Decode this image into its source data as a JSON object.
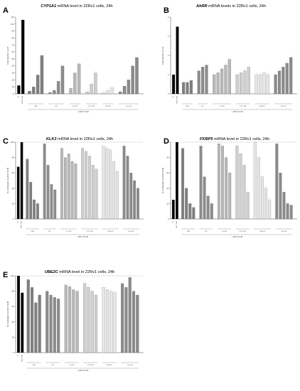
{
  "colors": {
    "ctrl": "#000000",
    "groups": [
      "#7f7f7f",
      "#8c8c8c",
      "#b8b8b8",
      "#cfcfcf",
      "#e6e6e6",
      "#8a8a8a"
    ]
  },
  "panels": [
    {
      "letter": "A",
      "gene": "CYP1A1",
      "title_rest": " mRNA level in 22Rv1 cells, 24h",
      "ylabel": "Fold induction vs UT",
      "dht_label": "+ DHT 10 nM",
      "chart_data": {
        "type": "bar",
        "ylim": [
          0,
          110
        ],
        "yticks": [
          0,
          10,
          20,
          30,
          40,
          50,
          60,
          70,
          80,
          90,
          100,
          110
        ],
        "reference_line": null,
        "ctrl_labels": [
          "UT",
          "TCDD 10nM"
        ],
        "ctrl_values": [
          12,
          106
        ],
        "groups": [
          {
            "name": "DIM",
            "values": [
              4,
              10,
              27,
              55
            ]
          },
          {
            "name": "I3C",
            "values": [
              2,
              5,
              18,
              40
            ]
          },
          {
            "name": "1-CO3I",
            "values": [
              8,
              30,
              43
            ]
          },
          {
            "name": "2,3,7-TIB",
            "values": [
              3,
              14,
              30
            ]
          },
          {
            "name": "I3-DIOX",
            "values": [
              2,
              5,
              9
            ]
          },
          {
            "name": "Tris-C3I",
            "values": [
              3,
              11,
              20,
              40,
              52
            ]
          }
        ]
      }
    },
    {
      "letter": "B",
      "gene": "AhRR",
      "title_rest": " mRNA levels in 22Rv1 cells, 24h",
      "ylabel": "Fold induction vs UT",
      "dht_label": "+ DHT 10 nM",
      "chart_data": {
        "type": "bar",
        "ylim": [
          0,
          4
        ],
        "yticks": [
          0,
          1,
          2,
          3,
          4
        ],
        "reference_line": null,
        "ctrl_labels": [
          "UT",
          "TCDD 10nM"
        ],
        "ctrl_values": [
          1.0,
          3.5
        ],
        "groups": [
          {
            "name": "DIM",
            "values": [
              0.6,
              0.6,
              0.7
            ]
          },
          {
            "name": "I3C",
            "values": [
              1.2,
              1.4,
              1.5
            ]
          },
          {
            "name": "1-CO3I",
            "values": [
              1.0,
              1.1,
              1.3,
              1.5,
              1.8
            ]
          },
          {
            "name": "2,3,7-TIB",
            "values": [
              1.0,
              1.1,
              1.2,
              1.4
            ]
          },
          {
            "name": "I3-DIOX",
            "values": [
              1.0,
              1.0,
              1.1,
              1.0
            ]
          },
          {
            "name": "Tris-C3I",
            "values": [
              1.0,
              1.2,
              1.4,
              1.6,
              1.9
            ]
          }
        ]
      }
    },
    {
      "letter": "C",
      "gene": "KLK3",
      "title_rest": " mRNA level in 22Rv1 cells, 24h",
      "ylabel": "% of activation by DHT 10nM",
      "dht_label": "+ DHT 10 nM",
      "chart_data": {
        "type": "bar",
        "ylim": [
          0,
          100
        ],
        "yticks": [
          0,
          20,
          40,
          60,
          80,
          100
        ],
        "reference_line": 100,
        "ctrl_labels": [
          "UT",
          "DHT 10nM"
        ],
        "ctrl_values": [
          68,
          100
        ],
        "groups": [
          {
            "name": "DIM",
            "values": [
              78,
              48,
              25,
              20
            ]
          },
          {
            "name": "I3C",
            "values": [
              98,
              70,
              45,
              38
            ]
          },
          {
            "name": "1-CO3I",
            "values": [
              92,
              80,
              85,
              75,
              72
            ]
          },
          {
            "name": "2,3,7-TIB",
            "values": [
              92,
              88,
              82,
              70,
              65
            ]
          },
          {
            "name": "I3-DIOX",
            "values": [
              95,
              92,
              90,
              75,
              62
            ]
          },
          {
            "name": "Tris-C3I",
            "values": [
              95,
              82,
              60,
              50,
              40
            ]
          }
        ]
      }
    },
    {
      "letter": "D",
      "gene": "FKBP5",
      "title_rest": " mRNA level in 22Rv1 cells, 24h",
      "ylabel": "% of activation by DHT 10nM",
      "dht_label": "+ DHT 10 nM",
      "chart_data": {
        "type": "bar",
        "ylim": [
          0,
          100
        ],
        "yticks": [
          0,
          20,
          40,
          60,
          80,
          100
        ],
        "reference_line": 100,
        "ctrl_labels": [
          "UT",
          "DHT 10nM"
        ],
        "ctrl_values": [
          25,
          100
        ],
        "groups": [
          {
            "name": "DIM",
            "values": [
              92,
              40,
              20,
              15
            ]
          },
          {
            "name": "I3C",
            "values": [
              95,
              55,
              30,
              20
            ]
          },
          {
            "name": "1-CO3I",
            "values": [
              98,
              95,
              80,
              60
            ]
          },
          {
            "name": "2,3,7-TIB",
            "values": [
              95,
              85,
              70,
              35
            ]
          },
          {
            "name": "I3-DIOX",
            "values": [
              100,
              80,
              55,
              40,
              25
            ]
          },
          {
            "name": "Tris-C3I",
            "values": [
              98,
              60,
              35,
              20,
              18
            ]
          }
        ]
      }
    },
    {
      "letter": "E",
      "gene": "UBE2C",
      "title_rest": " mRNA level in 22Rv1 cells, 24h",
      "ylabel": "% of activation by DHT 10nM",
      "dht_label": "+ DHT 10 nM",
      "chart_data": {
        "type": "bar",
        "ylim": [
          0,
          100
        ],
        "yticks": [
          0,
          20,
          40,
          60,
          80,
          100
        ],
        "reference_line": 100,
        "ctrl_labels": [
          "UT",
          "DHT 10nM"
        ],
        "ctrl_values": [
          100,
          78
        ],
        "groups": [
          {
            "name": "DIM",
            "values": [
              95,
              85,
              65,
              75
            ]
          },
          {
            "name": "I3C",
            "values": [
              80,
              75,
              72,
              70
            ]
          },
          {
            "name": "1-CO3I",
            "values": [
              88,
              86,
              82,
              80
            ]
          },
          {
            "name": "2,3,7-TIB",
            "values": [
              90,
              85,
              80,
              75
            ]
          },
          {
            "name": "I3-DIOX",
            "values": [
              85,
              82,
              80,
              78
            ]
          },
          {
            "name": "Tris-C3I",
            "values": [
              90,
              85,
              98,
              80,
              75
            ]
          }
        ]
      }
    }
  ]
}
